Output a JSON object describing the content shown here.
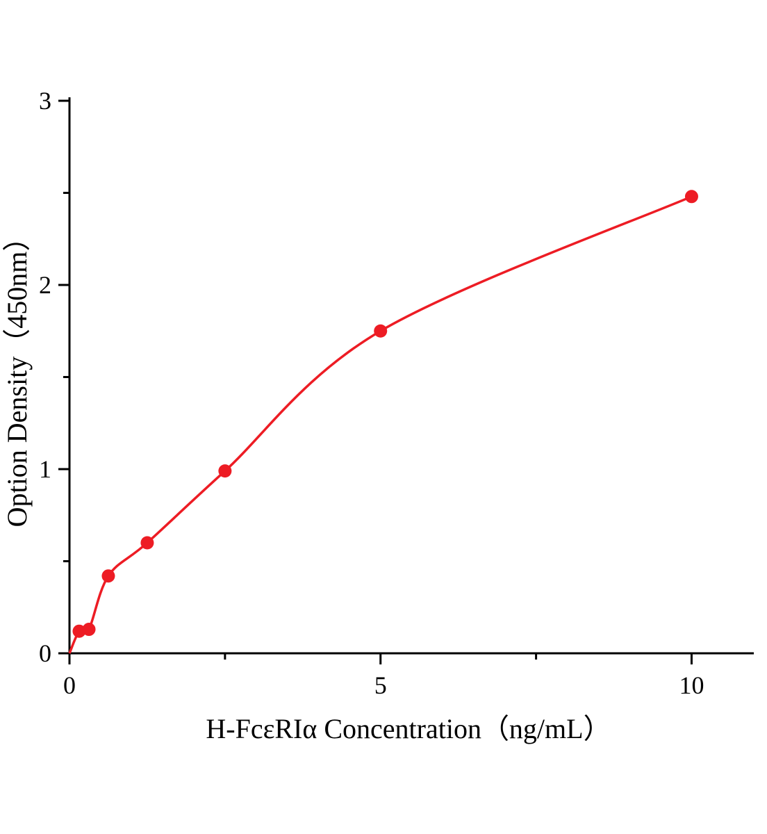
{
  "chart_data": {
    "type": "scatter",
    "title": "",
    "xlabel": "H-FcεRIα Concentration（ng/mL）",
    "ylabel": "Option Density（450nm）",
    "x": [
      0.156,
      0.313,
      0.625,
      1.25,
      2.5,
      5,
      10
    ],
    "y": [
      0.12,
      0.13,
      0.42,
      0.6,
      0.99,
      1.75,
      2.48
    ],
    "curve_start": {
      "x": 0,
      "y": 0
    },
    "xlim": [
      0,
      11
    ],
    "ylim": [
      0,
      3
    ],
    "xticks": [
      0,
      5,
      10
    ],
    "yticks": [
      0,
      1,
      2,
      3
    ],
    "x_minor_ticks": [
      2.5,
      7.5
    ],
    "y_minor_ticks": [
      0.5,
      1.5,
      2.5
    ],
    "legend": "none",
    "grid": "off",
    "point_color": "#ed1c24",
    "line_color": "#ed1c24",
    "axis_color": "#000000"
  }
}
